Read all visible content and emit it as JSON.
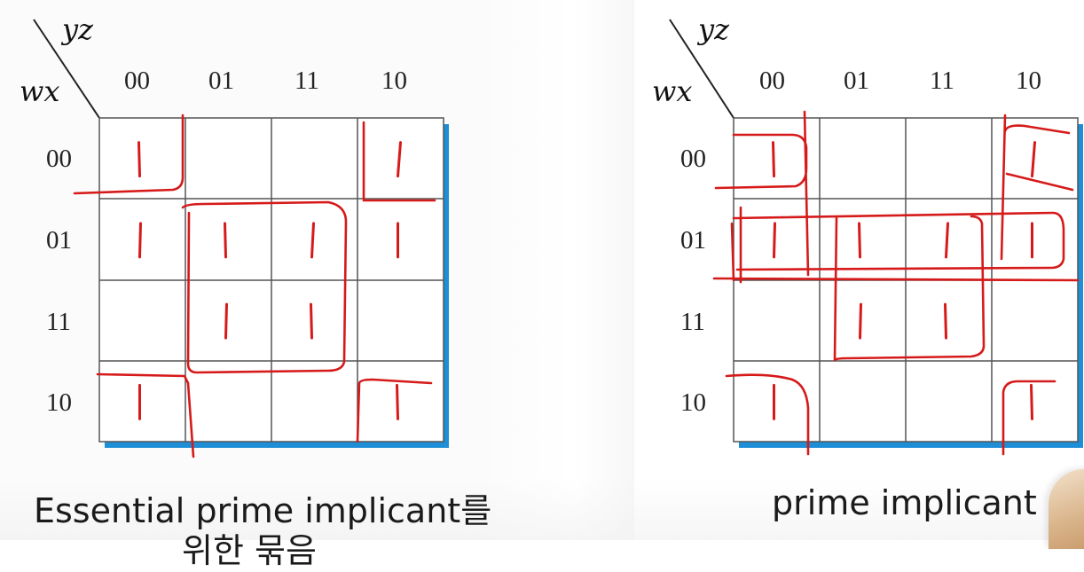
{
  "left_map": {
    "row_var": "wx",
    "col_var": "yz",
    "col_labels": [
      "00",
      "01",
      "11",
      "10"
    ],
    "row_labels": [
      "00",
      "01",
      "11",
      "10"
    ],
    "cells": [
      [
        "1",
        "",
        "",
        "1"
      ],
      [
        "1",
        "1",
        "1",
        "1"
      ],
      [
        "",
        "1",
        "1",
        ""
      ],
      [
        "1",
        "",
        "",
        "1"
      ]
    ],
    "caption_line1": "Essential prime implicant를",
    "caption_line2": "위한 묶음"
  },
  "right_map": {
    "row_var": "wx",
    "col_var": "yz",
    "col_labels": [
      "00",
      "01",
      "11",
      "10"
    ],
    "row_labels": [
      "00",
      "01",
      "11",
      "10"
    ],
    "cells": [
      [
        "1",
        "",
        "",
        "1"
      ],
      [
        "1",
        "1",
        "1",
        "1"
      ],
      [
        "",
        "1",
        "1",
        ""
      ],
      [
        "1",
        "",
        "",
        "1"
      ]
    ],
    "caption": "prime implicant"
  },
  "colors": {
    "ink": "#d61a1a",
    "grid": "#555555",
    "shadow": "#1e8fd6"
  }
}
